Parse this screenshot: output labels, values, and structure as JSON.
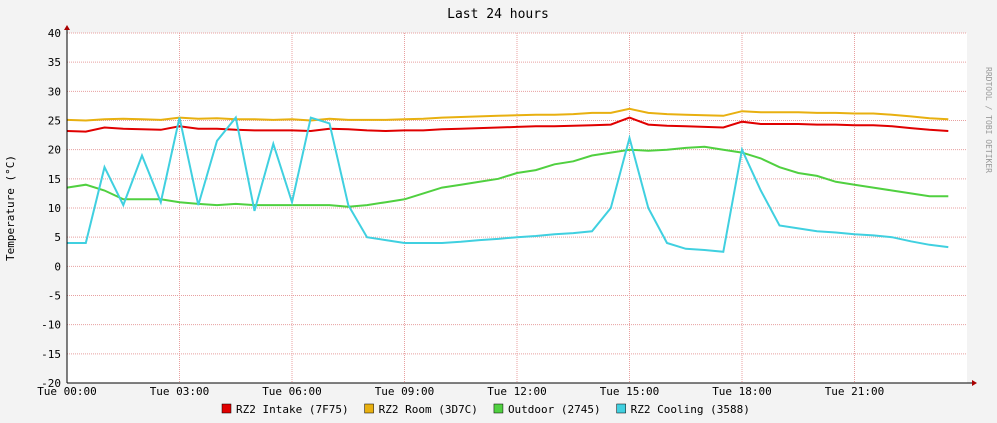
{
  "chart_data": {
    "type": "line",
    "title": "Last 24 hours",
    "y_label": "Temperature (°C)",
    "watermark": "RRDTOOL / TOBI OETIKER",
    "x": [
      0,
      0.5,
      1,
      1.5,
      2,
      2.5,
      3,
      3.5,
      4,
      4.5,
      5,
      5.5,
      6,
      6.5,
      7,
      7.5,
      8,
      8.5,
      9,
      9.5,
      10,
      10.5,
      11,
      11.5,
      12,
      12.5,
      13,
      13.5,
      14,
      14.5,
      15,
      15.5,
      16,
      16.5,
      17,
      17.5,
      18,
      18.5,
      19,
      19.5,
      20,
      20.5,
      21,
      21.5,
      22,
      22.5,
      23,
      23.5
    ],
    "xlim": [
      0,
      24
    ],
    "xticks": [
      {
        "value": 0,
        "label": "Tue 00:00"
      },
      {
        "value": 3,
        "label": "Tue 03:00"
      },
      {
        "value": 6,
        "label": "Tue 06:00"
      },
      {
        "value": 9,
        "label": "Tue 09:00"
      },
      {
        "value": 12,
        "label": "Tue 12:00"
      },
      {
        "value": 15,
        "label": "Tue 15:00"
      },
      {
        "value": 18,
        "label": "Tue 18:00"
      },
      {
        "value": 21,
        "label": "Tue 21:00"
      }
    ],
    "ylim": [
      -20,
      40
    ],
    "yticks": [
      -20,
      -15,
      -10,
      -5,
      0,
      5,
      10,
      15,
      20,
      25,
      30,
      35,
      40
    ],
    "grid": true,
    "series": [
      {
        "name": "RZ2 Intake (7F75)",
        "color": "#e00000",
        "values": [
          23.2,
          23.1,
          23.8,
          23.6,
          23.5,
          23.4,
          24,
          23.6,
          23.6,
          23.4,
          23.3,
          23.3,
          23.3,
          23.2,
          23.6,
          23.5,
          23.3,
          23.2,
          23.3,
          23.3,
          23.5,
          23.6,
          23.7,
          23.8,
          23.9,
          24,
          24,
          24.1,
          24.2,
          24.3,
          25.5,
          24.3,
          24.1,
          24,
          23.9,
          23.8,
          24.8,
          24.4,
          24.4,
          24.4,
          24.3,
          24.3,
          24.2,
          24.2,
          24,
          23.7,
          23.4,
          23.2
        ]
      },
      {
        "name": "RZ2 Room (3D7C)",
        "color": "#e8b010",
        "values": [
          25.1,
          25,
          25.2,
          25.3,
          25.2,
          25.1,
          25.5,
          25.3,
          25.4,
          25.2,
          25.2,
          25.1,
          25.2,
          25,
          25.3,
          25.1,
          25.1,
          25.1,
          25.2,
          25.3,
          25.5,
          25.6,
          25.7,
          25.8,
          25.9,
          26,
          26,
          26.1,
          26.3,
          26.3,
          27,
          26.3,
          26.1,
          26,
          25.9,
          25.8,
          26.6,
          26.4,
          26.4,
          26.4,
          26.3,
          26.3,
          26.2,
          26.2,
          26,
          25.7,
          25.4,
          25.2
        ]
      },
      {
        "name": "Outdoor (2745)",
        "color": "#50d040",
        "values": [
          13.5,
          14,
          13,
          11.5,
          11.5,
          11.5,
          11,
          10.7,
          10.5,
          10.7,
          10.5,
          10.5,
          10.5,
          10.5,
          10.5,
          10.2,
          10.5,
          11,
          11.5,
          12.5,
          13.5,
          14,
          14.5,
          15,
          16,
          16.5,
          17.5,
          18,
          19,
          19.5,
          20,
          19.8,
          20,
          20.3,
          20.5,
          20,
          19.5,
          18.5,
          17,
          16,
          15.5,
          14.5,
          14,
          13.5,
          13,
          12.5,
          12,
          12
        ]
      },
      {
        "name": "RZ2 Cooling (3588)",
        "color": "#40d0e0",
        "values": [
          4,
          4,
          17,
          10.5,
          19,
          11,
          25.5,
          10.5,
          21.5,
          25.5,
          9.5,
          21,
          11,
          25.5,
          24.5,
          10.5,
          5,
          4.5,
          4,
          4,
          4,
          4.2,
          4.5,
          4.7,
          5,
          5.2,
          5.5,
          5.7,
          6,
          10,
          22,
          10,
          4,
          3,
          2.8,
          2.5,
          20,
          13,
          7,
          6.5,
          6,
          5.8,
          5.5,
          5.3,
          5,
          4.3,
          3.7,
          3.3
        ]
      }
    ]
  }
}
